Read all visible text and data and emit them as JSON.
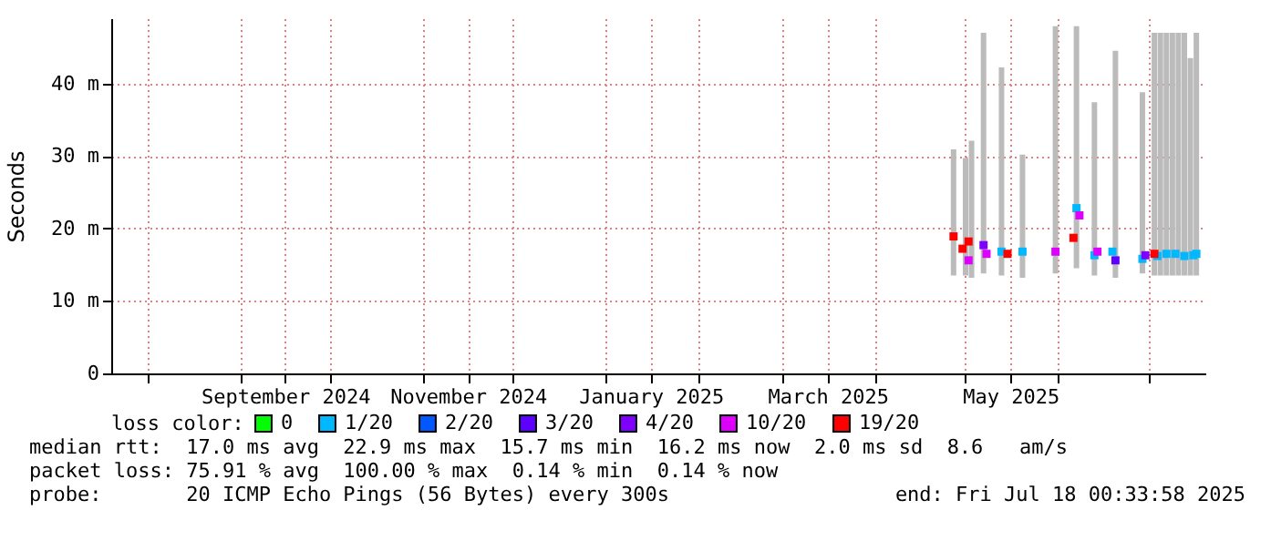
{
  "chart_data": {
    "type": "scatter",
    "ylabel": "Seconds",
    "legend_title": "loss color:",
    "legend": "bottom",
    "grid": true,
    "marker": "square",
    "xlim": [
      "2024-07-20",
      "2025-07-20"
    ],
    "xticks": [
      {
        "value": "2024-08-01",
        "label": null
      },
      {
        "value": "2024-09-01",
        "label": null
      },
      {
        "value": "2024-09-16",
        "label": "September 2024"
      },
      {
        "value": "2024-10-01",
        "label": null
      },
      {
        "value": "2024-11-01",
        "label": null
      },
      {
        "value": "2024-11-16",
        "label": "November 2024"
      },
      {
        "value": "2024-12-01",
        "label": null
      },
      {
        "value": "2025-01-01",
        "label": null
      },
      {
        "value": "2025-01-16",
        "label": "January 2025"
      },
      {
        "value": "2025-02-01",
        "label": null
      },
      {
        "value": "2025-03-01",
        "label": null
      },
      {
        "value": "2025-03-16",
        "label": "March 2025"
      },
      {
        "value": "2025-04-01",
        "label": null
      },
      {
        "value": "2025-05-01",
        "label": null
      },
      {
        "value": "2025-05-16",
        "label": "May 2025"
      },
      {
        "value": "2025-06-01",
        "label": null
      },
      {
        "value": "2025-07-01",
        "label": null
      }
    ],
    "ylim": [
      0,
      49
    ],
    "yticks": [
      0,
      {
        "value": 10,
        "label": "10 m"
      },
      {
        "value": 20,
        "label": "20 m"
      },
      {
        "value": 30,
        "label": "30 m"
      },
      {
        "value": 40,
        "label": "40 m"
      }
    ],
    "series": [
      {
        "type": "bar",
        "color": "#bbbbbb",
        "x": [
          "2025-04-27",
          "2025-05-01",
          "2025-05-03",
          "2025-05-07",
          "2025-05-13",
          "2025-05-20",
          "2025-05-31",
          "2025-06-07",
          "2025-06-13",
          "2025-06-20",
          "2025-06-29",
          "2025-07-03",
          "2025-07-05",
          "2025-07-07",
          "2025-07-09",
          "2025-07-11",
          "2025-07-13",
          "2025-07-15",
          "2025-07-17"
        ],
        "base": [
          13.5,
          13.5,
          13.2,
          13.8,
          13.5,
          13.2,
          13.8,
          14.5,
          13.5,
          13.2,
          13.8,
          13.5,
          13.5,
          13.5,
          13.5,
          13.5,
          13.5,
          13.5,
          13.5
        ],
        "values": [
          17.4,
          16.2,
          18.9,
          33.2,
          28.7,
          17,
          34.1,
          33.4,
          23.9,
          31.3,
          25,
          33.5,
          33.5,
          33.5,
          33.5,
          33.5,
          33.5,
          30,
          33.5
        ]
      },
      {
        "name": "0",
        "color": "#00ff00"
      },
      {
        "name": "1/20",
        "color": "#00b8ff",
        "x": [
          "2025-05-13",
          "2025-05-20",
          "2025-06-07",
          "2025-06-13",
          "2025-06-19",
          "2025-06-29",
          "2025-07-04",
          "2025-07-07",
          "2025-07-10",
          "2025-07-13",
          "2025-07-16",
          "2025-07-17"
        ],
        "values": [
          16.8,
          16.8,
          22.8,
          16.3,
          16.8,
          15.8,
          16.2,
          16.5,
          16.5,
          16.2,
          16.3,
          16.5
        ]
      },
      {
        "name": "2/20",
        "color": "#0059ff"
      },
      {
        "name": "3/20",
        "color": "#5e00ff",
        "x": [
          "2025-06-20"
        ],
        "values": [
          15.6
        ]
      },
      {
        "name": "4/20",
        "color": "#7e00ff",
        "x": [
          "2025-06-30",
          "2025-05-07"
        ],
        "values": [
          16.3,
          17.7
        ]
      },
      {
        "name": "10/20",
        "color": "#dd00ff",
        "x": [
          "2025-05-02",
          "2025-05-08",
          "2025-05-31",
          "2025-06-08",
          "2025-06-14"
        ],
        "values": [
          15.6,
          16.5,
          16.8,
          21.8,
          16.8
        ]
      },
      {
        "name": "19/20",
        "color": "#ff0000",
        "x": [
          "2025-04-27",
          "2025-04-30",
          "2025-05-02",
          "2025-05-15",
          "2025-06-06",
          "2025-07-03"
        ],
        "values": [
          18.9,
          17.2,
          18.2,
          16.5,
          18.7,
          16.5
        ]
      }
    ],
    "annotations": [
      "median rtt:  17.0 ms avg  22.9 ms max  15.7 ms min  16.2 ms now  2.0 ms sd  8.6   am/s",
      "packet loss: 75.91 % avg  100.00 % max  0.14 % min  0.14 % now",
      "probe:       20 ICMP Echo Pings (56 Bytes) every 300s",
      "end: Fri Jul 18 00:33:58 2025"
    ]
  }
}
